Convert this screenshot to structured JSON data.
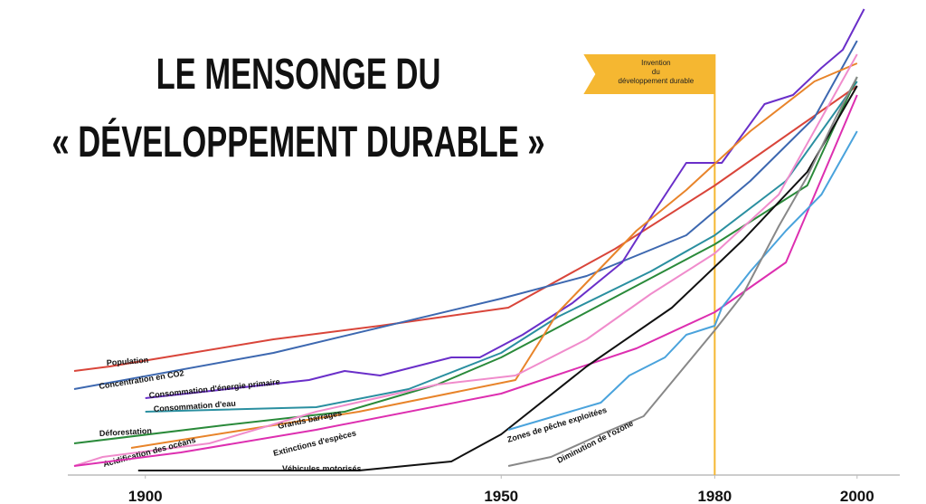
{
  "chart_data": {
    "type": "line",
    "title": [
      "LE MENSONGE DU",
      "« DÉVELOPPEMENT DURABLE »"
    ],
    "xlim": [
      1890,
      2006
    ],
    "ylim": [
      0,
      105
    ],
    "xticks": [
      1900,
      1950,
      1980,
      2000
    ],
    "annotation": {
      "x": 1980,
      "color": "#f5b731",
      "lines": [
        "Invention",
        "du",
        "développement durable"
      ]
    },
    "series": [
      {
        "name": "Population",
        "color": "#d9453a",
        "x": [
          1890,
          1895,
          1918,
          1933,
          1951,
          1966,
          1980,
          2000
        ],
        "values": [
          23,
          24,
          30,
          33,
          37,
          50,
          64,
          86
        ]
      },
      {
        "name": "Concentration en CO2",
        "color": "#3d68b0",
        "x": [
          1890,
          1918,
          1950,
          1962,
          1976,
          1985,
          1994,
          2000
        ],
        "values": [
          19,
          27,
          39,
          44,
          53,
          65,
          79,
          96
        ]
      },
      {
        "name": "Consommation d'énergie primaire",
        "color": "#6a2fc9",
        "x": [
          1900,
          1923,
          1928,
          1933,
          1943,
          1947,
          1953,
          1960,
          1967,
          1971,
          1976,
          1981,
          1987,
          1991,
          1995,
          1998,
          2001
        ],
        "values": [
          17,
          21,
          23,
          22,
          26,
          26,
          31,
          38,
          47,
          57,
          69,
          69,
          82,
          84,
          90,
          94,
          103
        ]
      },
      {
        "name": "Consommation d'eau",
        "color": "#2a8fa0",
        "x": [
          1900,
          1924,
          1937,
          1950,
          1958,
          1971,
          1980,
          1990,
          2000
        ],
        "values": [
          14,
          15,
          19,
          27,
          35,
          45,
          53,
          65,
          87
        ]
      },
      {
        "name": "Déforestation",
        "color": "#2a8a3a",
        "x": [
          1890,
          1911,
          1928,
          1941,
          1950,
          1962,
          1980,
          1993,
          2000
        ],
        "values": [
          7,
          11,
          14,
          20,
          26,
          36,
          51,
          64,
          88
        ]
      },
      {
        "name": "Grands barrages",
        "color": "#e8842a",
        "x": [
          1898,
          1918,
          1930,
          1952,
          1958,
          1969,
          1976,
          1985,
          1994,
          2000
        ],
        "values": [
          6,
          11,
          14,
          21,
          36,
          54,
          63,
          76,
          87,
          91
        ]
      },
      {
        "name": "Acidification des océans",
        "color": "#f08ccc",
        "x": [
          1890,
          1894,
          1909,
          1924,
          1941,
          1952,
          1962,
          1971,
          1980,
          1989,
          2000
        ],
        "values": [
          2,
          4,
          7,
          14,
          20,
          22,
          30,
          40,
          49,
          62,
          93
        ]
      },
      {
        "name": "Extinctions d'espèces",
        "color": "#dd2fb0",
        "x": [
          1890,
          1905,
          1924,
          1950,
          1969,
          1980,
          1990,
          2000
        ],
        "values": [
          2,
          5,
          10,
          18,
          28,
          36,
          47,
          84
        ]
      },
      {
        "name": "Véhicules motorisés",
        "color": "#111111",
        "x": [
          1899,
          1930,
          1943,
          1950,
          1962,
          1974,
          1984,
          1993,
          2000
        ],
        "values": [
          1,
          1,
          3,
          9,
          24,
          37,
          52,
          67,
          86
        ]
      },
      {
        "name": "Zones de pêche exploitées",
        "color": "#4aa3dc",
        "x": [
          1951,
          1964,
          1966,
          1968,
          1973,
          1976,
          1980,
          1981,
          1985,
          1990,
          1995,
          2000
        ],
        "values": [
          10,
          16,
          19,
          22,
          26,
          31,
          33,
          37,
          45,
          54,
          62,
          76
        ]
      },
      {
        "name": "Diminution de l'ozone",
        "color": "#888888",
        "x": [
          1951,
          1957,
          1964,
          1970,
          1980,
          1984,
          1989,
          1993,
          1997,
          2000
        ],
        "values": [
          2,
          4,
          9,
          13,
          32,
          40,
          55,
          66,
          79,
          88
        ]
      }
    ]
  }
}
